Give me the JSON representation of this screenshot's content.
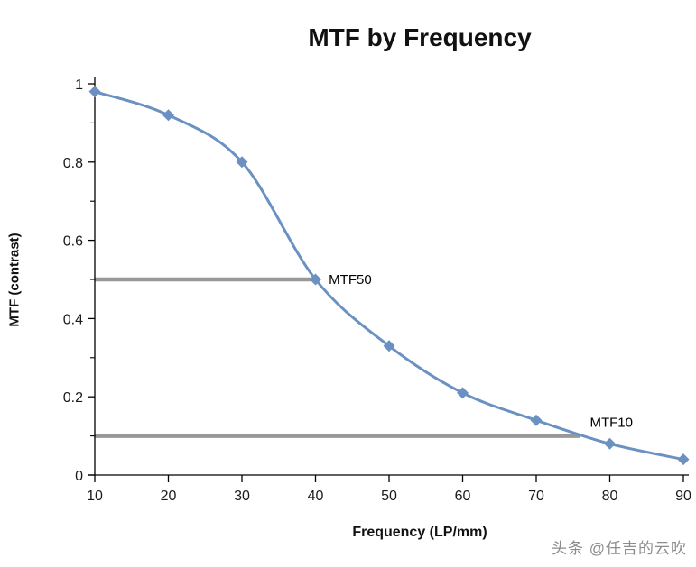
{
  "title": "MTF by Frequency",
  "watermark": "头条 @任吉的云吹",
  "chart_data": {
    "type": "line",
    "title": "MTF by Frequency",
    "xlabel": "Frequency (LP/mm)",
    "ylabel": "MTF (contrast)",
    "xlim": [
      10,
      90
    ],
    "ylim": [
      0,
      1
    ],
    "x_ticks": [
      10,
      20,
      30,
      40,
      50,
      60,
      70,
      80,
      90
    ],
    "y_ticks_major": [
      0,
      0.2,
      0.4,
      0.6,
      0.8,
      1
    ],
    "y_ticks_minor": [
      0.1,
      0.3,
      0.5,
      0.7,
      0.9
    ],
    "grid": false,
    "legend": "none",
    "colors": {
      "line": "#6a91c2",
      "reference": "#989898",
      "axis": "#000000"
    },
    "series": [
      {
        "name": "MTF",
        "x": [
          10,
          20,
          30,
          40,
          50,
          60,
          70,
          80,
          90
        ],
        "y": [
          0.98,
          0.92,
          0.8,
          0.5,
          0.33,
          0.21,
          0.14,
          0.08,
          0.04
        ],
        "color": "#6a91c2",
        "marker": "diamond",
        "smooth": true
      }
    ],
    "reference_lines": [
      {
        "label": "MTF50",
        "y": 0.5,
        "x_start": 10,
        "x_end": 40,
        "color": "#989898",
        "label_x": 41.8,
        "label_y": 0.5
      },
      {
        "label": "MTF10",
        "y": 0.1,
        "x_start": 10,
        "x_end": 76,
        "color": "#989898",
        "label_x": 77.3,
        "label_y": 0.135
      }
    ]
  }
}
